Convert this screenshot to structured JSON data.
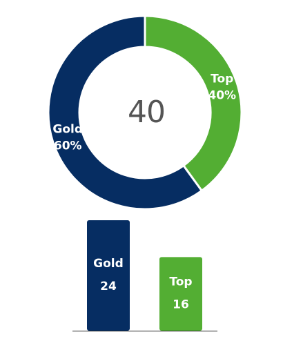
{
  "chart_data": [
    {
      "type": "donut",
      "center_value": 40,
      "categories": [
        "Gold",
        "Top"
      ],
      "values": [
        60,
        40
      ],
      "value_labels": [
        "60%",
        "40%"
      ],
      "colors": [
        "#062d62",
        "#53ae33"
      ]
    },
    {
      "type": "bar",
      "categories": [
        "Gold",
        "Top"
      ],
      "values": [
        24,
        16
      ],
      "colors": [
        "#062d62",
        "#53ae33"
      ]
    }
  ]
}
